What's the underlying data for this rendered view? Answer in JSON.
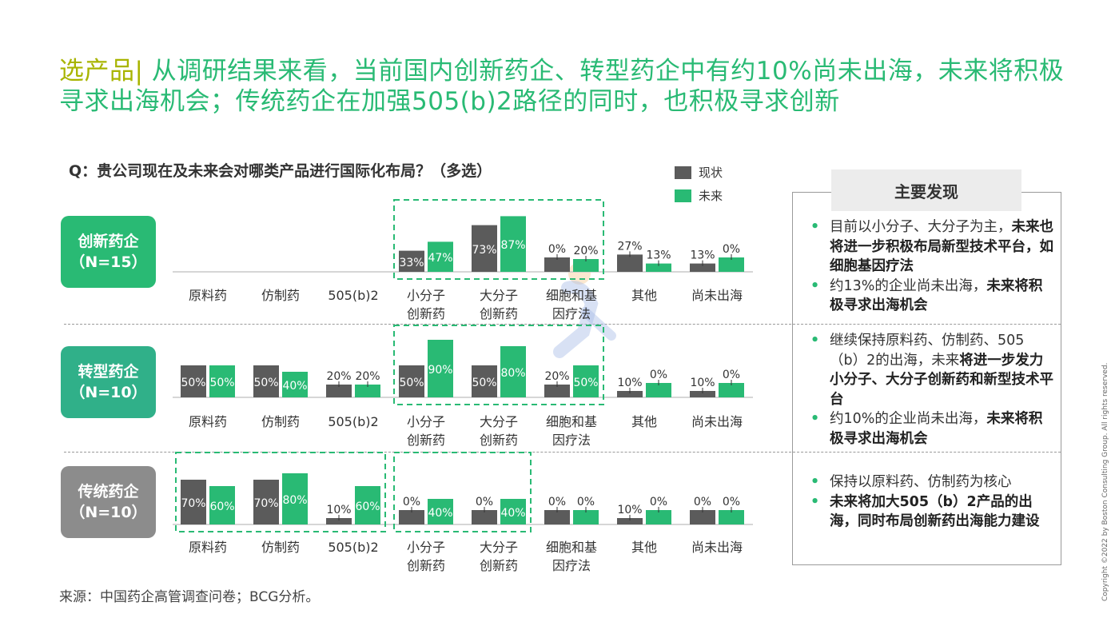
{
  "title": {
    "tag": "选产品|",
    "text": " 从调研结果来看，当前国内创新药企、转型药企中有约10%尚未出海，未来将积极寻求出海机会；传统药企在加强505(b)2路径的同时，也积极寻求创新"
  },
  "question": "Q：贵公司现在及未来会对哪类产品进行国际化布局？（多选）",
  "legend": [
    {
      "label": "现状",
      "color": "#5b5b5b"
    },
    {
      "label": "未来",
      "color": "#29ba74"
    }
  ],
  "colors": {
    "current": "#5b5b5b",
    "future": "#29ba74",
    "innovative": "#29ba74",
    "transforming": "#30b089",
    "traditional": "#8c8c8c"
  },
  "groups": [
    {
      "line1": "创新药企",
      "line2": "（N=15）"
    },
    {
      "line1": "转型药企",
      "line2": "（N=10）"
    },
    {
      "line1": "传统药企",
      "line2": "（N=10）"
    }
  ],
  "chart_data": [
    {
      "type": "bar",
      "title": "创新药企（N=15）",
      "categories": [
        "原料药",
        "仿制药",
        "505(b)2",
        "小分子\n创新药",
        "大分子\n创新药",
        "细胞和基\n因疗法",
        "其他",
        "尚未出海"
      ],
      "series": [
        {
          "name": "现状",
          "values": [
            null,
            null,
            null,
            33,
            73,
            0,
            27,
            13
          ]
        },
        {
          "name": "未来",
          "values": [
            null,
            null,
            null,
            47,
            87,
            20,
            13,
            0
          ]
        }
      ],
      "ylim": [
        0,
        100
      ]
    },
    {
      "type": "bar",
      "title": "转型药企（N=10）",
      "categories": [
        "原料药",
        "仿制药",
        "505(b)2",
        "小分子\n创新药",
        "大分子\n创新药",
        "细胞和基\n因疗法",
        "其他",
        "尚未出海"
      ],
      "series": [
        {
          "name": "现状",
          "values": [
            50,
            50,
            20,
            50,
            50,
            20,
            10,
            10
          ]
        },
        {
          "name": "未来",
          "values": [
            50,
            40,
            20,
            90,
            80,
            50,
            0,
            0
          ]
        }
      ],
      "ylim": [
        0,
        100
      ]
    },
    {
      "type": "bar",
      "title": "传统药企（N=10）",
      "categories": [
        "原料药",
        "仿制药",
        "505(b)2",
        "小分子\n创新药",
        "大分子\n创新药",
        "细胞和基\n因疗法",
        "其他",
        "尚未出海"
      ],
      "series": [
        {
          "name": "现状",
          "values": [
            70,
            70,
            10,
            0,
            0,
            0,
            10,
            0
          ]
        },
        {
          "name": "未来",
          "values": [
            60,
            80,
            60,
            40,
            40,
            0,
            0,
            0
          ]
        }
      ],
      "ylim": [
        0,
        100
      ]
    }
  ],
  "highlights": [
    {
      "panel": 0,
      "from": 3,
      "to": 5
    },
    {
      "panel": 1,
      "from": 3,
      "to": 5
    },
    {
      "panel": 2,
      "from": 0,
      "to": 2
    },
    {
      "panel": 2,
      "from": 3,
      "to": 4
    }
  ],
  "findings": {
    "heading": "主要发现",
    "sections": [
      [
        [
          {
            "t": "目前以小分子、大分子为主，"
          },
          {
            "t": "未来也将进一步积极布局新型技术平台，如细胞基因疗法",
            "b": true
          }
        ],
        [
          {
            "t": "约13%的企业尚未出海，"
          },
          {
            "t": "未来将积极寻求出海机会",
            "b": true
          }
        ]
      ],
      [
        [
          {
            "t": "继续保持原料药、仿制药、505（b）2的出海，未来"
          },
          {
            "t": "将进一步发力小分子、大分子创新药和新型技术平台",
            "b": true
          }
        ],
        [
          {
            "t": "约10%的企业尚未出海，"
          },
          {
            "t": "未来将积极寻求出海机会",
            "b": true
          }
        ]
      ],
      [
        [
          {
            "t": "保持以原料药、仿制药为核心"
          }
        ],
        [
          {
            "t": "未来将加大505（b）2产品的出海，同时布局创新药出海能力建设",
            "b": true
          }
        ]
      ]
    ]
  },
  "source": "来源：中国药企高管调查问卷；BCG分析。",
  "copyright": "Copyright ©2022 by Boston Consulting Group. All rights reserved."
}
